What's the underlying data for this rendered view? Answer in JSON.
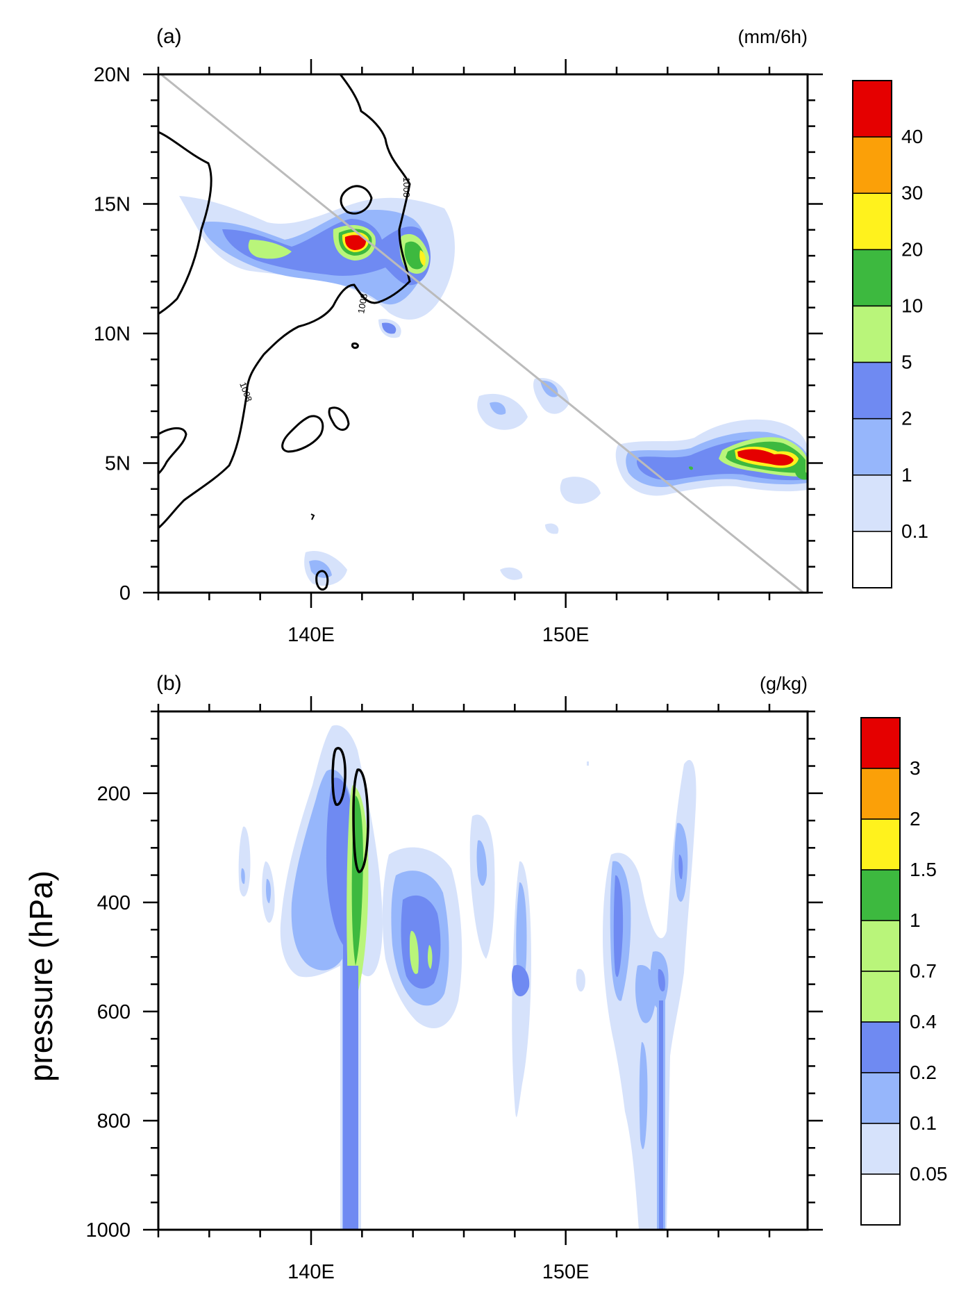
{
  "chart_data": [
    {
      "type": "contour-map",
      "panel_label": "(a)",
      "units": "(mm/6h)",
      "x_ticks": [
        {
          "value": 140,
          "label": "140E"
        },
        {
          "value": 150,
          "label": "150E"
        }
      ],
      "y_ticks": [
        {
          "value": 0,
          "label": "0"
        },
        {
          "value": 5,
          "label": "5N"
        },
        {
          "value": 10,
          "label": "10N"
        },
        {
          "value": 15,
          "label": "15N"
        },
        {
          "value": 20,
          "label": "20N"
        }
      ],
      "xlim": [
        134,
        159.5
      ],
      "ylim": [
        0,
        20
      ],
      "colorbar_levels": [
        "0.1",
        "1",
        "2",
        "5",
        "10",
        "20",
        "30",
        "40"
      ],
      "colorbar_colors": [
        "#ffffff",
        "#d6e2fb",
        "#96b6fb",
        "#6f8af2",
        "#b9f57a",
        "#3db93f",
        "#fff21d",
        "#fba008",
        "#e50000"
      ],
      "contour_labels": [
        "1008",
        "1008",
        "1008"
      ],
      "cross_section_line": {
        "from": [
          134.2,
          19.9
        ],
        "to": [
          158.8,
          0
        ]
      }
    },
    {
      "type": "contour-cross-section",
      "panel_label": "(b)",
      "units": "(g/kg)",
      "ylabel": "pressure (hPa)",
      "x_ticks": [
        {
          "value": 140,
          "label": "140E"
        },
        {
          "value": 150,
          "label": "150E"
        }
      ],
      "y_ticks": [
        {
          "value": 200,
          "label": "200"
        },
        {
          "value": 400,
          "label": "400"
        },
        {
          "value": 600,
          "label": "600"
        },
        {
          "value": 800,
          "label": "800"
        },
        {
          "value": 1000,
          "label": "1000"
        }
      ],
      "xlim": [
        134,
        159.5
      ],
      "ylim": [
        1000,
        50
      ],
      "colorbar_levels": [
        "0.05",
        "0.1",
        "0.2",
        "0.4",
        "0.7",
        "1",
        "1.5",
        "2",
        "3"
      ],
      "colorbar_colors": [
        "#ffffff",
        "#d6e2fb",
        "#96b6fb",
        "#6f8af2",
        "#b9f57a",
        "#b9f57a",
        "#3db93f",
        "#fff21d",
        "#fba008",
        "#e50000"
      ]
    }
  ]
}
